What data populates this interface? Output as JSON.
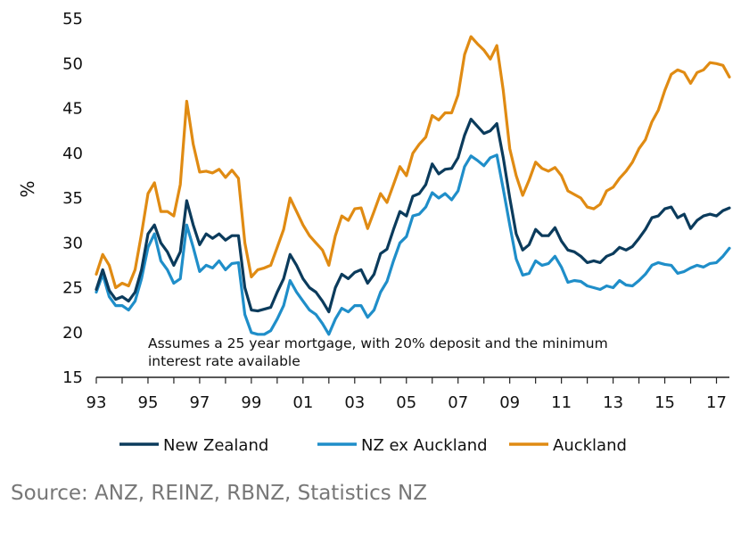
{
  "chart_data": {
    "type": "line",
    "title": "",
    "xlabel": "",
    "ylabel": "%",
    "ylim": [
      15,
      55
    ],
    "xlim": [
      1993,
      2017.5
    ],
    "yticks": [
      "15",
      "20",
      "25",
      "30",
      "35",
      "40",
      "45",
      "50",
      "55"
    ],
    "xticks": [
      "93",
      "95",
      "97",
      "99",
      "01",
      "03",
      "05",
      "07",
      "09",
      "11",
      "13",
      "15",
      "17"
    ],
    "grid": false,
    "legend": "bottom",
    "annotation": [
      "Assumes a 25 year mortgage, with 20% deposit and the minimum",
      "interest rate available"
    ],
    "series": [
      {
        "name": "New Zealand",
        "color": "#0b3b5c",
        "points": [
          [
            1993.0,
            24.8
          ],
          [
            1993.25,
            27.0
          ],
          [
            1993.5,
            24.7
          ],
          [
            1993.75,
            23.7
          ],
          [
            1994.0,
            24.0
          ],
          [
            1994.25,
            23.5
          ],
          [
            1994.5,
            24.5
          ],
          [
            1994.75,
            27.0
          ],
          [
            1995.0,
            31.0
          ],
          [
            1995.25,
            32.0
          ],
          [
            1995.5,
            30.0
          ],
          [
            1995.75,
            29.0
          ],
          [
            1996.0,
            27.5
          ],
          [
            1996.25,
            29.0
          ],
          [
            1996.5,
            34.7
          ],
          [
            1996.75,
            32.0
          ],
          [
            1997.0,
            29.8
          ],
          [
            1997.25,
            31.0
          ],
          [
            1997.5,
            30.5
          ],
          [
            1997.75,
            31.0
          ],
          [
            1998.0,
            30.3
          ],
          [
            1998.25,
            30.8
          ],
          [
            1998.5,
            30.8
          ],
          [
            1998.75,
            25.0
          ],
          [
            1999.0,
            22.5
          ],
          [
            1999.25,
            22.4
          ],
          [
            1999.5,
            22.6
          ],
          [
            1999.75,
            22.8
          ],
          [
            2000.0,
            24.5
          ],
          [
            2000.25,
            26.0
          ],
          [
            2000.5,
            28.7
          ],
          [
            2000.75,
            27.5
          ],
          [
            2001.0,
            26.0
          ],
          [
            2001.25,
            25.0
          ],
          [
            2001.5,
            24.5
          ],
          [
            2001.75,
            23.5
          ],
          [
            2002.0,
            22.3
          ],
          [
            2002.25,
            25.0
          ],
          [
            2002.5,
            26.5
          ],
          [
            2002.75,
            26.0
          ],
          [
            2003.0,
            26.7
          ],
          [
            2003.25,
            27.0
          ],
          [
            2003.5,
            25.5
          ],
          [
            2003.75,
            26.5
          ],
          [
            2004.0,
            28.8
          ],
          [
            2004.25,
            29.3
          ],
          [
            2004.5,
            31.5
          ],
          [
            2004.75,
            33.5
          ],
          [
            2005.0,
            33.0
          ],
          [
            2005.25,
            35.2
          ],
          [
            2005.5,
            35.5
          ],
          [
            2005.75,
            36.5
          ],
          [
            2006.0,
            38.8
          ],
          [
            2006.25,
            37.7
          ],
          [
            2006.5,
            38.2
          ],
          [
            2006.75,
            38.3
          ],
          [
            2007.0,
            39.5
          ],
          [
            2007.25,
            42.0
          ],
          [
            2007.5,
            43.8
          ],
          [
            2007.75,
            43.0
          ],
          [
            2008.0,
            42.2
          ],
          [
            2008.25,
            42.5
          ],
          [
            2008.5,
            43.3
          ],
          [
            2008.75,
            39.5
          ],
          [
            2009.0,
            35.0
          ],
          [
            2009.25,
            31.0
          ],
          [
            2009.5,
            29.2
          ],
          [
            2009.75,
            29.8
          ],
          [
            2010.0,
            31.5
          ],
          [
            2010.25,
            30.8
          ],
          [
            2010.5,
            30.8
          ],
          [
            2010.75,
            31.7
          ],
          [
            2011.0,
            30.2
          ],
          [
            2011.25,
            29.2
          ],
          [
            2011.5,
            29.0
          ],
          [
            2011.75,
            28.5
          ],
          [
            2012.0,
            27.8
          ],
          [
            2012.25,
            28.0
          ],
          [
            2012.5,
            27.8
          ],
          [
            2012.75,
            28.5
          ],
          [
            2013.0,
            28.8
          ],
          [
            2013.25,
            29.5
          ],
          [
            2013.5,
            29.2
          ],
          [
            2013.75,
            29.6
          ],
          [
            2014.0,
            30.5
          ],
          [
            2014.25,
            31.5
          ],
          [
            2014.5,
            32.8
          ],
          [
            2014.75,
            33.0
          ],
          [
            2015.0,
            33.8
          ],
          [
            2015.25,
            34.0
          ],
          [
            2015.5,
            32.8
          ],
          [
            2015.75,
            33.2
          ],
          [
            2016.0,
            31.6
          ],
          [
            2016.25,
            32.5
          ],
          [
            2016.5,
            33.0
          ],
          [
            2016.75,
            33.2
          ],
          [
            2017.0,
            33.0
          ],
          [
            2017.25,
            33.6
          ],
          [
            2017.5,
            33.9
          ]
        ]
      },
      {
        "name": "NZ ex Auckland",
        "color": "#1f8ec9",
        "points": [
          [
            1993.0,
            24.5
          ],
          [
            1993.25,
            26.5
          ],
          [
            1993.5,
            24.0
          ],
          [
            1993.75,
            23.0
          ],
          [
            1994.0,
            23.0
          ],
          [
            1994.25,
            22.5
          ],
          [
            1994.5,
            23.5
          ],
          [
            1994.75,
            26.0
          ],
          [
            1995.0,
            29.5
          ],
          [
            1995.25,
            31.0
          ],
          [
            1995.5,
            28.0
          ],
          [
            1995.75,
            27.0
          ],
          [
            1996.0,
            25.5
          ],
          [
            1996.25,
            26.0
          ],
          [
            1996.5,
            32.0
          ],
          [
            1996.75,
            29.5
          ],
          [
            1997.0,
            26.8
          ],
          [
            1997.25,
            27.5
          ],
          [
            1997.5,
            27.2
          ],
          [
            1997.75,
            28.0
          ],
          [
            1998.0,
            27.0
          ],
          [
            1998.25,
            27.7
          ],
          [
            1998.5,
            27.8
          ],
          [
            1998.75,
            22.0
          ],
          [
            1999.0,
            20.0
          ],
          [
            1999.25,
            19.8
          ],
          [
            1999.5,
            19.8
          ],
          [
            1999.75,
            20.2
          ],
          [
            2000.0,
            21.5
          ],
          [
            2000.25,
            23.0
          ],
          [
            2000.5,
            25.8
          ],
          [
            2000.75,
            24.5
          ],
          [
            2001.0,
            23.5
          ],
          [
            2001.25,
            22.5
          ],
          [
            2001.5,
            22.0
          ],
          [
            2001.75,
            21.0
          ],
          [
            2002.0,
            19.8
          ],
          [
            2002.25,
            21.5
          ],
          [
            2002.5,
            22.7
          ],
          [
            2002.75,
            22.3
          ],
          [
            2003.0,
            23.0
          ],
          [
            2003.25,
            23.0
          ],
          [
            2003.5,
            21.7
          ],
          [
            2003.75,
            22.5
          ],
          [
            2004.0,
            24.5
          ],
          [
            2004.25,
            25.7
          ],
          [
            2004.5,
            28.0
          ],
          [
            2004.75,
            30.0
          ],
          [
            2005.0,
            30.7
          ],
          [
            2005.25,
            33.0
          ],
          [
            2005.5,
            33.2
          ],
          [
            2005.75,
            34.0
          ],
          [
            2006.0,
            35.6
          ],
          [
            2006.25,
            35.0
          ],
          [
            2006.5,
            35.5
          ],
          [
            2006.75,
            34.8
          ],
          [
            2007.0,
            35.8
          ],
          [
            2007.25,
            38.5
          ],
          [
            2007.5,
            39.7
          ],
          [
            2007.75,
            39.2
          ],
          [
            2008.0,
            38.6
          ],
          [
            2008.25,
            39.5
          ],
          [
            2008.5,
            39.8
          ],
          [
            2008.75,
            36.0
          ],
          [
            2009.0,
            32.0
          ],
          [
            2009.25,
            28.2
          ],
          [
            2009.5,
            26.4
          ],
          [
            2009.75,
            26.6
          ],
          [
            2010.0,
            28.0
          ],
          [
            2010.25,
            27.5
          ],
          [
            2010.5,
            27.7
          ],
          [
            2010.75,
            28.5
          ],
          [
            2011.0,
            27.3
          ],
          [
            2011.25,
            25.6
          ],
          [
            2011.5,
            25.8
          ],
          [
            2011.75,
            25.7
          ],
          [
            2012.0,
            25.2
          ],
          [
            2012.25,
            25.0
          ],
          [
            2012.5,
            24.8
          ],
          [
            2012.75,
            25.2
          ],
          [
            2013.0,
            25.0
          ],
          [
            2013.25,
            25.8
          ],
          [
            2013.5,
            25.3
          ],
          [
            2013.75,
            25.2
          ],
          [
            2014.0,
            25.8
          ],
          [
            2014.25,
            26.5
          ],
          [
            2014.5,
            27.5
          ],
          [
            2014.75,
            27.8
          ],
          [
            2015.0,
            27.6
          ],
          [
            2015.25,
            27.5
          ],
          [
            2015.5,
            26.6
          ],
          [
            2015.75,
            26.8
          ],
          [
            2016.0,
            27.2
          ],
          [
            2016.25,
            27.5
          ],
          [
            2016.5,
            27.3
          ],
          [
            2016.75,
            27.7
          ],
          [
            2017.0,
            27.8
          ],
          [
            2017.25,
            28.5
          ],
          [
            2017.5,
            29.4
          ]
        ]
      },
      {
        "name": "Auckland",
        "color": "#e08b13",
        "points": [
          [
            1993.0,
            26.5
          ],
          [
            1993.25,
            28.7
          ],
          [
            1993.5,
            27.5
          ],
          [
            1993.75,
            25.0
          ],
          [
            1994.0,
            25.5
          ],
          [
            1994.25,
            25.2
          ],
          [
            1994.5,
            27.0
          ],
          [
            1994.75,
            31.0
          ],
          [
            1995.0,
            35.5
          ],
          [
            1995.25,
            36.7
          ],
          [
            1995.5,
            33.5
          ],
          [
            1995.75,
            33.5
          ],
          [
            1996.0,
            33.0
          ],
          [
            1996.25,
            36.5
          ],
          [
            1996.5,
            45.8
          ],
          [
            1996.75,
            41.0
          ],
          [
            1997.0,
            37.9
          ],
          [
            1997.25,
            38.0
          ],
          [
            1997.5,
            37.8
          ],
          [
            1997.75,
            38.2
          ],
          [
            1998.0,
            37.3
          ],
          [
            1998.25,
            38.1
          ],
          [
            1998.5,
            37.2
          ],
          [
            1998.75,
            30.0
          ],
          [
            1999.0,
            26.2
          ],
          [
            1999.25,
            27.0
          ],
          [
            1999.5,
            27.2
          ],
          [
            1999.75,
            27.5
          ],
          [
            2000.0,
            29.5
          ],
          [
            2000.25,
            31.5
          ],
          [
            2000.5,
            35.0
          ],
          [
            2000.75,
            33.5
          ],
          [
            2001.0,
            32.0
          ],
          [
            2001.25,
            30.8
          ],
          [
            2001.5,
            30.0
          ],
          [
            2001.75,
            29.2
          ],
          [
            2002.0,
            27.5
          ],
          [
            2002.25,
            30.8
          ],
          [
            2002.5,
            33.0
          ],
          [
            2002.75,
            32.5
          ],
          [
            2003.0,
            33.8
          ],
          [
            2003.25,
            33.9
          ],
          [
            2003.5,
            31.6
          ],
          [
            2003.75,
            33.5
          ],
          [
            2004.0,
            35.5
          ],
          [
            2004.25,
            34.5
          ],
          [
            2004.5,
            36.5
          ],
          [
            2004.75,
            38.5
          ],
          [
            2005.0,
            37.5
          ],
          [
            2005.25,
            40.0
          ],
          [
            2005.5,
            41.0
          ],
          [
            2005.75,
            41.8
          ],
          [
            2006.0,
            44.2
          ],
          [
            2006.25,
            43.7
          ],
          [
            2006.5,
            44.5
          ],
          [
            2006.75,
            44.5
          ],
          [
            2007.0,
            46.5
          ],
          [
            2007.25,
            51.0
          ],
          [
            2007.5,
            53.0
          ],
          [
            2007.75,
            52.2
          ],
          [
            2008.0,
            51.5
          ],
          [
            2008.25,
            50.5
          ],
          [
            2008.5,
            52.0
          ],
          [
            2008.75,
            47.0
          ],
          [
            2009.0,
            40.5
          ],
          [
            2009.25,
            37.5
          ],
          [
            2009.5,
            35.3
          ],
          [
            2009.75,
            37.0
          ],
          [
            2010.0,
            39.0
          ],
          [
            2010.25,
            38.3
          ],
          [
            2010.5,
            38.0
          ],
          [
            2010.75,
            38.4
          ],
          [
            2011.0,
            37.5
          ],
          [
            2011.25,
            35.8
          ],
          [
            2011.5,
            35.4
          ],
          [
            2011.75,
            35.0
          ],
          [
            2012.0,
            34.0
          ],
          [
            2012.25,
            33.8
          ],
          [
            2012.5,
            34.3
          ],
          [
            2012.75,
            35.8
          ],
          [
            2013.0,
            36.2
          ],
          [
            2013.25,
            37.2
          ],
          [
            2013.5,
            38.0
          ],
          [
            2013.75,
            39.0
          ],
          [
            2014.0,
            40.5
          ],
          [
            2014.25,
            41.5
          ],
          [
            2014.5,
            43.5
          ],
          [
            2014.75,
            44.8
          ],
          [
            2015.0,
            47.0
          ],
          [
            2015.25,
            48.8
          ],
          [
            2015.5,
            49.3
          ],
          [
            2015.75,
            49.0
          ],
          [
            2016.0,
            47.8
          ],
          [
            2016.25,
            49.0
          ],
          [
            2016.5,
            49.3
          ],
          [
            2016.75,
            50.1
          ],
          [
            2017.0,
            50.0
          ],
          [
            2017.25,
            49.8
          ],
          [
            2017.5,
            48.5
          ]
        ]
      }
    ]
  },
  "source": "Source: ANZ, REINZ, RBNZ, Statistics NZ"
}
